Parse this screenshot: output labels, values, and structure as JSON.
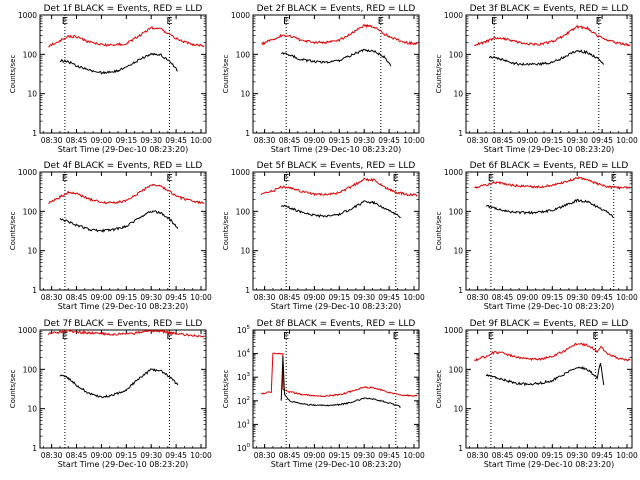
{
  "figure": {
    "x_tick_labels": [
      "08:30",
      "08:45",
      "09:00",
      "09:15",
      "09:30",
      "09:45",
      "10:00"
    ],
    "xlabel": "Start Time (29-Dec-10 08:23:20)",
    "ylabel": "Counts/sec",
    "colors": {
      "events": "#000000",
      "lld": "#dd0000",
      "axes": "#000000",
      "background": "#ffffff"
    }
  },
  "chart_data": [
    {
      "type": "line",
      "title": "Det 1f BLACK = Events, RED = LLD",
      "x_range": [
        "08:23",
        "10:03"
      ],
      "ylim": [
        1,
        1000
      ],
      "yscale": "log",
      "y_tick_labels": [
        "1",
        "10",
        "100",
        "1000"
      ],
      "markers": [
        {
          "label": "E",
          "x": "08:38"
        },
        {
          "label": "E",
          "x": "09:41"
        }
      ],
      "series": [
        {
          "name": "LLD",
          "color": "#dd0000",
          "x": [
            "08:28",
            "08:35",
            "08:40",
            "08:45",
            "08:52",
            "09:00",
            "09:07",
            "09:15",
            "09:22",
            "09:30",
            "09:36",
            "09:42",
            "09:48",
            "09:55",
            "10:02"
          ],
          "values": [
            160,
            220,
            290,
            280,
            210,
            175,
            170,
            190,
            280,
            470,
            440,
            300,
            220,
            180,
            165
          ]
        },
        {
          "name": "Events",
          "color": "#000000",
          "x": [
            "08:35",
            "08:40",
            "08:45",
            "08:52",
            "09:00",
            "09:07",
            "09:15",
            "09:22",
            "09:30",
            "09:36",
            "09:42",
            "09:46"
          ],
          "values": [
            70,
            65,
            52,
            40,
            34,
            36,
            45,
            70,
            105,
            95,
            60,
            38
          ]
        }
      ]
    },
    {
      "type": "line",
      "title": "Det 2f BLACK = Events, RED = LLD",
      "x_range": [
        "08:23",
        "10:03"
      ],
      "ylim": [
        1,
        1000
      ],
      "yscale": "log",
      "y_tick_labels": [
        "1",
        "10",
        "100",
        "1000"
      ],
      "markers": [
        {
          "label": "E",
          "x": "08:43"
        },
        {
          "label": "E",
          "x": "09:40"
        }
      ],
      "series": [
        {
          "name": "LLD",
          "color": "#dd0000",
          "x": [
            "08:28",
            "08:35",
            "08:40",
            "08:45",
            "08:52",
            "09:00",
            "09:07",
            "09:15",
            "09:22",
            "09:30",
            "09:36",
            "09:42",
            "09:48",
            "09:55",
            "10:02"
          ],
          "values": [
            180,
            240,
            300,
            290,
            230,
            200,
            200,
            230,
            330,
            540,
            500,
            330,
            250,
            200,
            185
          ]
        },
        {
          "name": "Events",
          "color": "#000000",
          "x": [
            "08:40",
            "08:45",
            "08:52",
            "09:00",
            "09:07",
            "09:15",
            "09:22",
            "09:30",
            "09:36",
            "09:42",
            "09:46"
          ],
          "values": [
            110,
            95,
            75,
            65,
            62,
            70,
            95,
            130,
            120,
            85,
            50
          ]
        }
      ]
    },
    {
      "type": "line",
      "title": "Det 3f BLACK = Events, RED = LLD",
      "x_range": [
        "08:23",
        "10:03"
      ],
      "ylim": [
        1,
        1000
      ],
      "yscale": "log",
      "y_tick_labels": [
        "1",
        "10",
        "100",
        "1000"
      ],
      "markers": [
        {
          "label": "E",
          "x": "08:40"
        },
        {
          "label": "E",
          "x": "09:43"
        }
      ],
      "series": [
        {
          "name": "LLD",
          "color": "#dd0000",
          "x": [
            "08:28",
            "08:35",
            "08:40",
            "08:45",
            "08:52",
            "09:00",
            "09:07",
            "09:15",
            "09:22",
            "09:30",
            "09:36",
            "09:42",
            "09:48",
            "09:55",
            "10:02"
          ],
          "values": [
            170,
            210,
            260,
            260,
            215,
            185,
            180,
            210,
            300,
            500,
            470,
            300,
            230,
            190,
            175
          ]
        },
        {
          "name": "Events",
          "color": "#000000",
          "x": [
            "08:37",
            "08:42",
            "08:47",
            "08:52",
            "09:00",
            "09:07",
            "09:15",
            "09:22",
            "09:30",
            "09:36",
            "09:42",
            "09:46"
          ],
          "values": [
            85,
            80,
            68,
            58,
            55,
            56,
            62,
            85,
            125,
            112,
            80,
            55
          ]
        }
      ]
    },
    {
      "type": "line",
      "title": "Det 4f BLACK = Events, RED = LLD",
      "x_range": [
        "08:23",
        "10:03"
      ],
      "ylim": [
        1,
        1000
      ],
      "yscale": "log",
      "y_tick_labels": [
        "1",
        "10",
        "100",
        "1000"
      ],
      "markers": [
        {
          "label": "E",
          "x": "08:38"
        },
        {
          "label": "E",
          "x": "09:41"
        }
      ],
      "series": [
        {
          "name": "LLD",
          "color": "#dd0000",
          "x": [
            "08:28",
            "08:35",
            "08:40",
            "08:45",
            "08:52",
            "09:00",
            "09:07",
            "09:15",
            "09:22",
            "09:30",
            "09:36",
            "09:42",
            "09:48",
            "09:55",
            "10:02"
          ],
          "values": [
            160,
            230,
            300,
            280,
            210,
            170,
            165,
            185,
            280,
            470,
            440,
            300,
            220,
            180,
            160
          ]
        },
        {
          "name": "Events",
          "color": "#000000",
          "x": [
            "08:35",
            "08:40",
            "08:45",
            "08:52",
            "09:00",
            "09:07",
            "09:15",
            "09:22",
            "09:30",
            "09:36",
            "09:42",
            "09:46"
          ],
          "values": [
            65,
            55,
            45,
            35,
            32,
            34,
            42,
            65,
            100,
            92,
            58,
            36
          ]
        }
      ]
    },
    {
      "type": "line",
      "title": "Det 5f BLACK = Events, RED = LLD",
      "x_range": [
        "08:23",
        "10:03"
      ],
      "ylim": [
        1,
        1000
      ],
      "yscale": "log",
      "y_tick_labels": [
        "1",
        "10",
        "100",
        "1000"
      ],
      "markers": [
        {
          "label": "E",
          "x": "08:43"
        },
        {
          "label": "E",
          "x": "09:49"
        }
      ],
      "series": [
        {
          "name": "LLD",
          "color": "#dd0000",
          "x": [
            "08:28",
            "08:35",
            "08:40",
            "08:45",
            "08:52",
            "09:00",
            "09:07",
            "09:15",
            "09:22",
            "09:30",
            "09:36",
            "09:42",
            "09:48",
            "09:55",
            "10:02"
          ],
          "values": [
            260,
            330,
            420,
            410,
            320,
            270,
            265,
            300,
            420,
            650,
            620,
            420,
            320,
            270,
            255
          ]
        },
        {
          "name": "Events",
          "color": "#000000",
          "x": [
            "08:40",
            "08:45",
            "08:52",
            "09:00",
            "09:07",
            "09:15",
            "09:22",
            "09:30",
            "09:36",
            "09:42",
            "09:48",
            "09:52"
          ],
          "values": [
            140,
            125,
            95,
            78,
            75,
            85,
            115,
            175,
            165,
            120,
            90,
            70
          ]
        }
      ]
    },
    {
      "type": "line",
      "title": "Det 6f BLACK = Events, RED = LLD",
      "x_range": [
        "08:23",
        "10:03"
      ],
      "ylim": [
        1,
        1000
      ],
      "yscale": "log",
      "y_tick_labels": [
        "1",
        "10",
        "100",
        "1000"
      ],
      "markers": [
        {
          "label": "E",
          "x": "08:38"
        },
        {
          "label": "E",
          "x": "09:52"
        }
      ],
      "series": [
        {
          "name": "LLD",
          "color": "#dd0000",
          "x": [
            "08:28",
            "08:35",
            "08:40",
            "08:45",
            "08:52",
            "09:00",
            "09:07",
            "09:15",
            "09:22",
            "09:30",
            "09:36",
            "09:42",
            "09:48",
            "09:55",
            "10:02"
          ],
          "values": [
            400,
            470,
            540,
            520,
            450,
            420,
            420,
            460,
            560,
            700,
            660,
            500,
            420,
            400,
            400
          ]
        },
        {
          "name": "Events",
          "color": "#000000",
          "x": [
            "08:35",
            "08:40",
            "08:45",
            "08:52",
            "09:00",
            "09:07",
            "09:15",
            "09:22",
            "09:30",
            "09:36",
            "09:42",
            "09:48",
            "09:52"
          ],
          "values": [
            140,
            120,
            105,
            95,
            92,
            95,
            105,
            140,
            190,
            175,
            130,
            95,
            70
          ]
        }
      ]
    },
    {
      "type": "line",
      "title": "Det 7f BLACK = Events, RED = LLD",
      "x_range": [
        "08:23",
        "10:03"
      ],
      "ylim": [
        1,
        1000
      ],
      "yscale": "log",
      "y_tick_labels": [
        "1",
        "10",
        "100",
        "1000"
      ],
      "markers": [
        {
          "label": "E",
          "x": "08:38"
        },
        {
          "label": "E",
          "x": "09:41"
        }
      ],
      "series": [
        {
          "name": "LLD",
          "color": "#dd0000",
          "x": [
            "08:28",
            "08:35",
            "08:40",
            "08:45",
            "08:52",
            "09:00",
            "09:07",
            "09:15",
            "09:22",
            "09:30",
            "09:36",
            "09:42",
            "09:48",
            "09:55",
            "10:02"
          ],
          "values": [
            800,
            900,
            950,
            900,
            850,
            800,
            780,
            800,
            850,
            950,
            920,
            850,
            780,
            720,
            700
          ]
        },
        {
          "name": "Events",
          "color": "#000000",
          "x": [
            "08:35",
            "08:40",
            "08:45",
            "08:52",
            "09:00",
            "09:07",
            "09:15",
            "09:22",
            "09:30",
            "09:36",
            "09:42",
            "09:46"
          ],
          "values": [
            70,
            60,
            40,
            25,
            20,
            22,
            30,
            55,
            100,
            90,
            60,
            40
          ]
        }
      ]
    },
    {
      "type": "line",
      "title": "Det 8f BLACK = Events, RED = LLD",
      "x_range": [
        "08:23",
        "10:03"
      ],
      "ylim": [
        1,
        100000
      ],
      "yscale": "log",
      "y_tick_labels": [
        "10^0",
        "10^1",
        "10^2",
        "10^3",
        "10^4",
        "10^5"
      ],
      "markers": [
        {
          "label": "E",
          "x": "08:43"
        },
        {
          "label": "E",
          "x": "09:49"
        }
      ],
      "series": [
        {
          "name": "LLD",
          "color": "#dd0000",
          "x": [
            "08:28",
            "08:34",
            "08:35",
            "08:38",
            "08:41",
            "08:41",
            "08:45",
            "08:52",
            "09:00",
            "09:07",
            "09:15",
            "09:22",
            "09:30",
            "09:36",
            "09:42",
            "09:48",
            "09:55",
            "10:02"
          ],
          "values": [
            200,
            240,
            10000,
            10000,
            10000,
            300,
            240,
            190,
            160,
            160,
            180,
            250,
            380,
            360,
            260,
            200,
            170,
            160
          ]
        },
        {
          "name": "Events",
          "color": "#000000",
          "x": [
            "08:40",
            "08:41",
            "08:42",
            "08:45",
            "08:52",
            "09:00",
            "09:07",
            "09:15",
            "09:22",
            "09:30",
            "09:36",
            "09:42",
            "09:48",
            "09:52"
          ],
          "values": [
            100,
            8000,
            200,
            100,
            75,
            65,
            63,
            68,
            85,
            130,
            120,
            90,
            70,
            55
          ]
        }
      ]
    },
    {
      "type": "line",
      "title": "Det 9f BLACK = Events, RED = LLD",
      "x_range": [
        "08:23",
        "10:03"
      ],
      "ylim": [
        1,
        1000
      ],
      "yscale": "log",
      "y_tick_labels": [
        "1",
        "10",
        "100",
        "1000"
      ],
      "markers": [
        {
          "label": "E",
          "x": "08:38"
        },
        {
          "label": "E",
          "x": "09:41"
        }
      ],
      "series": [
        {
          "name": "LLD",
          "color": "#dd0000",
          "x": [
            "08:28",
            "08:35",
            "08:40",
            "08:45",
            "08:52",
            "09:00",
            "09:07",
            "09:15",
            "09:22",
            "09:30",
            "09:36",
            "09:42",
            "09:44",
            "09:48",
            "09:55",
            "10:02"
          ],
          "values": [
            170,
            215,
            270,
            260,
            210,
            185,
            180,
            210,
            290,
            450,
            420,
            290,
            380,
            250,
            190,
            170
          ]
        },
        {
          "name": "Events",
          "color": "#000000",
          "x": [
            "08:35",
            "08:40",
            "08:45",
            "08:52",
            "09:00",
            "09:07",
            "09:15",
            "09:22",
            "09:30",
            "09:36",
            "09:42",
            "09:44",
            "09:46"
          ],
          "values": [
            70,
            65,
            55,
            45,
            42,
            44,
            52,
            75,
            115,
            100,
            62,
            150,
            40
          ]
        }
      ]
    }
  ]
}
